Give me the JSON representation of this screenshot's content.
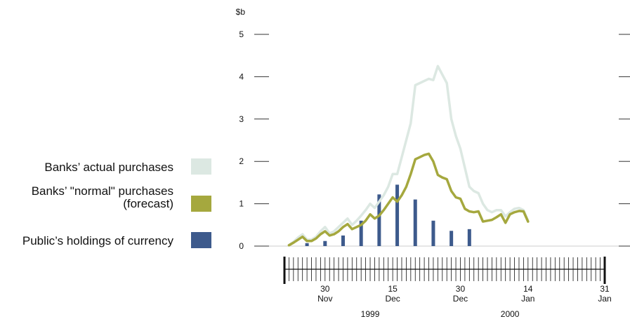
{
  "chart_data": {
    "type": "line",
    "ylabel": "$b",
    "ylim": [
      0,
      5
    ],
    "yticks": [
      "0",
      "1",
      "2",
      "3",
      "4",
      "5"
    ],
    "xlim": [
      "1999-11-21",
      "2000-01-31"
    ],
    "x_tick_labels": [
      {
        "date": "1999-11-30",
        "day": "30",
        "month": "Nov"
      },
      {
        "date": "1999-12-15",
        "day": "15",
        "month": "Dec"
      },
      {
        "date": "1999-12-30",
        "day": "30",
        "month": "Dec"
      },
      {
        "date": "2000-01-14",
        "day": "14",
        "month": "Jan"
      },
      {
        "date": "2000-01-31",
        "day": "31",
        "month": "Jan"
      }
    ],
    "year_labels": [
      {
        "date": "1999-12-10",
        "text": "1999"
      },
      {
        "date": "2000-01-10",
        "text": "2000"
      }
    ],
    "grid": false,
    "legend_position": "left",
    "series": [
      {
        "name": "Banks' actual purchases",
        "kind": "line",
        "color": "#dce8e2",
        "points": [
          [
            "1999-11-22",
            0.02
          ],
          [
            "1999-11-23",
            0.1
          ],
          [
            "1999-11-24",
            0.2
          ],
          [
            "1999-11-25",
            0.28
          ],
          [
            "1999-11-26",
            0.15
          ],
          [
            "1999-11-27",
            0.15
          ],
          [
            "1999-11-28",
            0.22
          ],
          [
            "1999-11-29",
            0.35
          ],
          [
            "1999-11-30",
            0.45
          ],
          [
            "1999-12-01",
            0.3
          ],
          [
            "1999-12-02",
            0.35
          ],
          [
            "1999-12-03",
            0.45
          ],
          [
            "1999-12-04",
            0.55
          ],
          [
            "1999-12-05",
            0.65
          ],
          [
            "1999-12-06",
            0.5
          ],
          [
            "1999-12-07",
            0.6
          ],
          [
            "1999-12-08",
            0.72
          ],
          [
            "1999-12-09",
            0.85
          ],
          [
            "1999-12-10",
            1.0
          ],
          [
            "1999-12-11",
            0.9
          ],
          [
            "1999-12-12",
            1.05
          ],
          [
            "1999-12-13",
            1.2
          ],
          [
            "1999-12-14",
            1.4
          ],
          [
            "1999-12-15",
            1.7
          ],
          [
            "1999-12-16",
            1.7
          ],
          [
            "1999-12-17",
            2.1
          ],
          [
            "1999-12-18",
            2.5
          ],
          [
            "1999-12-19",
            2.9
          ],
          [
            "1999-12-20",
            3.8
          ],
          [
            "1999-12-21",
            3.85
          ],
          [
            "1999-12-22",
            3.9
          ],
          [
            "1999-12-23",
            3.95
          ],
          [
            "1999-12-24",
            3.92
          ],
          [
            "1999-12-25",
            4.25
          ],
          [
            "1999-12-26",
            4.05
          ],
          [
            "1999-12-27",
            3.85
          ],
          [
            "1999-12-28",
            3.0
          ],
          [
            "1999-12-29",
            2.6
          ],
          [
            "1999-12-30",
            2.3
          ],
          [
            "1999-12-31",
            1.85
          ],
          [
            "2000-01-01",
            1.4
          ],
          [
            "2000-01-02",
            1.3
          ],
          [
            "2000-01-03",
            1.25
          ],
          [
            "2000-01-04",
            1.0
          ],
          [
            "2000-01-05",
            0.85
          ],
          [
            "2000-01-06",
            0.8
          ],
          [
            "2000-01-07",
            0.85
          ],
          [
            "2000-01-08",
            0.85
          ],
          [
            "2000-01-09",
            0.7
          ],
          [
            "2000-01-10",
            0.8
          ],
          [
            "2000-01-11",
            0.88
          ],
          [
            "2000-01-12",
            0.9
          ],
          [
            "2000-01-13",
            0.85
          ],
          [
            "2000-01-14",
            0.6
          ]
        ]
      },
      {
        "name": "Banks' \"normal\" purchases (forecast)",
        "kind": "line",
        "color": "#a5a83e",
        "points": [
          [
            "1999-11-22",
            0.02
          ],
          [
            "1999-11-23",
            0.08
          ],
          [
            "1999-11-24",
            0.15
          ],
          [
            "1999-11-25",
            0.22
          ],
          [
            "1999-11-26",
            0.12
          ],
          [
            "1999-11-27",
            0.12
          ],
          [
            "1999-11-28",
            0.18
          ],
          [
            "1999-11-29",
            0.28
          ],
          [
            "1999-11-30",
            0.35
          ],
          [
            "1999-12-01",
            0.25
          ],
          [
            "1999-12-02",
            0.28
          ],
          [
            "1999-12-03",
            0.35
          ],
          [
            "1999-12-04",
            0.45
          ],
          [
            "1999-12-05",
            0.52
          ],
          [
            "1999-12-06",
            0.4
          ],
          [
            "1999-12-07",
            0.45
          ],
          [
            "1999-12-08",
            0.5
          ],
          [
            "1999-12-09",
            0.6
          ],
          [
            "1999-12-10",
            0.75
          ],
          [
            "1999-12-11",
            0.65
          ],
          [
            "1999-12-12",
            0.72
          ],
          [
            "1999-12-13",
            0.85
          ],
          [
            "1999-12-14",
            1.0
          ],
          [
            "1999-12-15",
            1.15
          ],
          [
            "1999-12-16",
            1.05
          ],
          [
            "1999-12-17",
            1.2
          ],
          [
            "1999-12-18",
            1.4
          ],
          [
            "1999-12-19",
            1.7
          ],
          [
            "1999-12-20",
            2.05
          ],
          [
            "1999-12-21",
            2.1
          ],
          [
            "1999-12-22",
            2.15
          ],
          [
            "1999-12-23",
            2.18
          ],
          [
            "1999-12-24",
            2.0
          ],
          [
            "1999-12-25",
            1.68
          ],
          [
            "1999-12-26",
            1.62
          ],
          [
            "1999-12-27",
            1.58
          ],
          [
            "1999-12-28",
            1.3
          ],
          [
            "1999-12-29",
            1.15
          ],
          [
            "1999-12-30",
            1.12
          ],
          [
            "1999-12-31",
            0.88
          ],
          [
            "2000-01-01",
            0.82
          ],
          [
            "2000-01-02",
            0.8
          ],
          [
            "2000-01-03",
            0.82
          ],
          [
            "2000-01-04",
            0.58
          ],
          [
            "2000-01-05",
            0.6
          ],
          [
            "2000-01-06",
            0.62
          ],
          [
            "2000-01-07",
            0.68
          ],
          [
            "2000-01-08",
            0.75
          ],
          [
            "2000-01-09",
            0.55
          ],
          [
            "2000-01-10",
            0.75
          ],
          [
            "2000-01-11",
            0.8
          ],
          [
            "2000-01-12",
            0.83
          ],
          [
            "2000-01-13",
            0.82
          ],
          [
            "2000-01-14",
            0.58
          ]
        ]
      },
      {
        "name": "Public's holdings of currency",
        "kind": "bar",
        "color": "#3d5a8c",
        "points": [
          [
            "1999-11-26",
            0.07
          ],
          [
            "1999-11-30",
            0.12
          ],
          [
            "1999-12-04",
            0.25
          ],
          [
            "1999-12-08",
            0.6
          ],
          [
            "1999-12-12",
            1.22
          ],
          [
            "1999-12-16",
            1.45
          ],
          [
            "1999-12-20",
            1.1
          ],
          [
            "1999-12-24",
            0.6
          ],
          [
            "1999-12-28",
            0.36
          ],
          [
            "2000-01-01",
            0.4
          ]
        ]
      }
    ]
  },
  "legend": [
    {
      "line1": "Banks’ actual purchases",
      "line2": "",
      "color": "#dce8e2"
    },
    {
      "line1": "Banks’ \"normal\" purchases",
      "line2": "(forecast)",
      "color": "#a5a83e"
    },
    {
      "line1": "Public’s holdings of currency",
      "line2": "",
      "color": "#3d5a8c"
    }
  ]
}
